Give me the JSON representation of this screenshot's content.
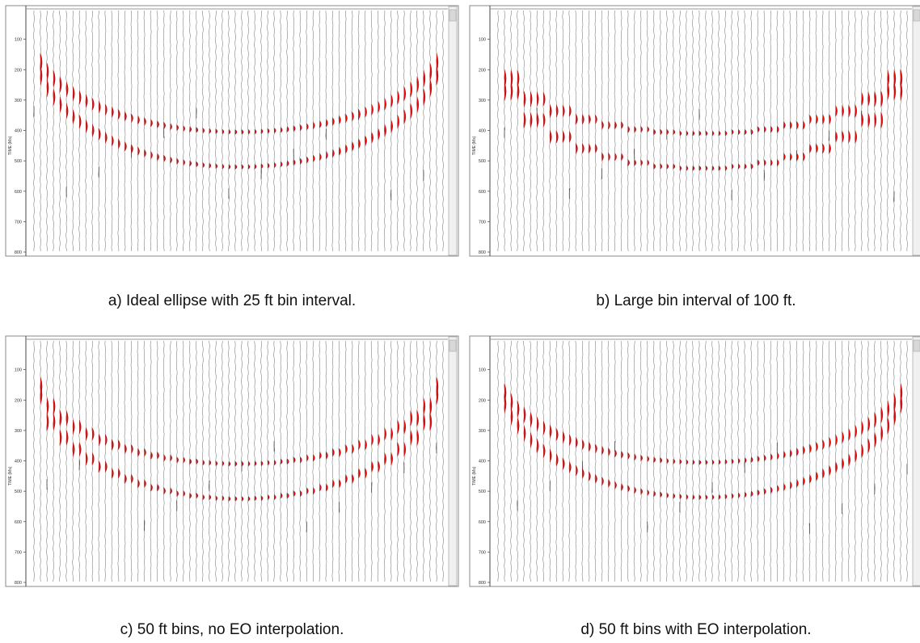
{
  "chart_data": [
    {
      "type": "seismic-traces",
      "caption": "a) Ideal ellipse with 25 ft bin interval.",
      "ylabel": "TIME (Ms)",
      "yticks": [
        100,
        200,
        300,
        400,
        500,
        600,
        700,
        800
      ],
      "ylim": [
        0,
        800
      ],
      "trace_count": 64,
      "bin_interval_ft": 25,
      "stepped": false,
      "events": [
        {
          "name": "upper ellipse",
          "apex_time": 405,
          "edge_time": 100
        },
        {
          "name": "lower ellipse",
          "apex_time": 520,
          "edge_time": 120
        }
      ],
      "event_color": "#dd1111"
    },
    {
      "type": "seismic-traces",
      "caption": "b) Large bin interval of 100 ft.",
      "ylabel": "TIME (Ms)",
      "yticks": [
        100,
        200,
        300,
        400,
        500,
        600,
        700,
        800
      ],
      "ylim": [
        0,
        800
      ],
      "trace_count": 64,
      "bin_interval_ft": 100,
      "stepped": true,
      "events": [
        {
          "name": "upper ellipse",
          "apex_time": 410,
          "edge_time": 150
        },
        {
          "name": "lower ellipse",
          "apex_time": 525,
          "edge_time": 160
        }
      ],
      "event_color": "#dd1111"
    },
    {
      "type": "seismic-traces",
      "caption": "c) 50 ft bins, no EO interpolation.",
      "ylabel": "TIME (Ms)",
      "yticks": [
        100,
        200,
        300,
        400,
        500,
        600,
        700,
        800
      ],
      "ylim": [
        0,
        800
      ],
      "trace_count": 64,
      "bin_interval_ft": 50,
      "stepped": true,
      "events": [
        {
          "name": "upper ellipse",
          "apex_time": 410,
          "edge_time": 100
        },
        {
          "name": "lower ellipse",
          "apex_time": 525,
          "edge_time": 110
        }
      ],
      "event_color": "#dd1111"
    },
    {
      "type": "seismic-traces",
      "caption": "d) 50 ft bins with EO interpolation.",
      "ylabel": "TIME (Ms)",
      "yticks": [
        100,
        200,
        300,
        400,
        500,
        600,
        700,
        800
      ],
      "ylim": [
        0,
        800
      ],
      "trace_count": 64,
      "bin_interval_ft": 50,
      "stepped": false,
      "events": [
        {
          "name": "upper ellipse",
          "apex_time": 405,
          "edge_time": 100
        },
        {
          "name": "lower ellipse",
          "apex_time": 520,
          "edge_time": 110
        }
      ],
      "event_color": "#dd1111"
    }
  ]
}
